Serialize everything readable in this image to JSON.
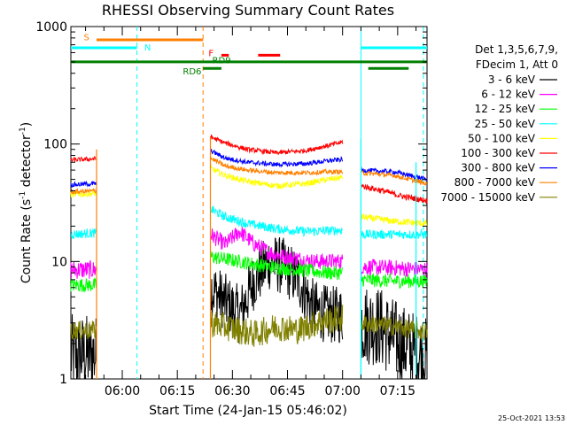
{
  "chart_data": {
    "type": "line",
    "title": "RHESSI Observing Summary Count Rates",
    "xlabel": "Start Time (24-Jan-15 05:46:02)",
    "ylabel_text": "Count Rate (s",
    "ylabel_sup1": "-1",
    "ylabel_mid": " detector",
    "ylabel_sup2": "-1",
    "ylabel_end": ")",
    "yscale": "log",
    "ylim": [
      1,
      1000
    ],
    "y_ticks": [
      {
        "value": 1,
        "label": "1"
      },
      {
        "value": 10,
        "label": "10"
      },
      {
        "value": 100,
        "label": "100"
      },
      {
        "value": 1000,
        "label": "1000"
      }
    ],
    "xlim_minutes": [
      0,
      97
    ],
    "x_ticks": [
      {
        "minute": 14,
        "label": "06:00"
      },
      {
        "minute": 29,
        "label": "06:15"
      },
      {
        "minute": 44,
        "label": "06:30"
      },
      {
        "minute": 59,
        "label": "06:45"
      },
      {
        "minute": 74,
        "label": "07:00"
      },
      {
        "minute": 89,
        "label": "07:15"
      }
    ],
    "legend_header": [
      "Det 1,3,5,6,7,9,",
      "FDecim 1, Att 0"
    ],
    "series": [
      {
        "name": "3 - 6 keV",
        "color": "#000000",
        "segments": [
          {
            "x": [
              0,
              7
            ],
            "y0": 1.6,
            "y1": 1.6,
            "noise": 0.35
          },
          {
            "x": [
              38,
              74
            ],
            "points": [
              [
                38,
                6
              ],
              [
                42,
                4.5
              ],
              [
                46,
                3.5
              ],
              [
                50,
                7
              ],
              [
                54,
                10
              ],
              [
                58,
                9
              ],
              [
                62,
                7
              ],
              [
                66,
                4
              ],
              [
                70,
                3.5
              ],
              [
                74,
                3.5
              ]
            ],
            "noise": 0.25
          },
          {
            "x": [
              79,
              97
            ],
            "points": [
              [
                79,
                3
              ],
              [
                84,
                2.8
              ],
              [
                88,
                2.2
              ],
              [
                92,
                1.8
              ],
              [
                97,
                1.5
              ]
            ],
            "noise": 0.35
          }
        ]
      },
      {
        "name": "6 - 12 keV",
        "color": "#ff00ff",
        "segments": [
          {
            "x": [
              0,
              7
            ],
            "y0": 8.5,
            "y1": 8.5,
            "noise": 0.08
          },
          {
            "x": [
              38,
              74
            ],
            "points": [
              [
                38,
                17
              ],
              [
                42,
                14
              ],
              [
                46,
                18
              ],
              [
                50,
                14
              ],
              [
                54,
                12
              ],
              [
                58,
                11
              ],
              [
                62,
                10.5
              ],
              [
                66,
                10
              ],
              [
                70,
                10
              ],
              [
                74,
                10
              ]
            ],
            "noise": 0.07
          },
          {
            "x": [
              79,
              97
            ],
            "points": [
              [
                79,
                9
              ],
              [
                88,
                8.8
              ],
              [
                97,
                8.5
              ]
            ],
            "noise": 0.07
          }
        ]
      },
      {
        "name": "12 - 25 keV",
        "color": "#00ff00",
        "segments": [
          {
            "x": [
              0,
              7
            ],
            "y0": 6.3,
            "y1": 6.3,
            "noise": 0.06
          },
          {
            "x": [
              38,
              74
            ],
            "points": [
              [
                38,
                11
              ],
              [
                46,
                10
              ],
              [
                54,
                9
              ],
              [
                62,
                8.5
              ],
              [
                70,
                8
              ],
              [
                74,
                8
              ]
            ],
            "noise": 0.06
          },
          {
            "x": [
              79,
              97
            ],
            "points": [
              [
                79,
                7
              ],
              [
                88,
                6.8
              ],
              [
                97,
                6.8
              ]
            ],
            "noise": 0.06
          }
        ]
      },
      {
        "name": "25 - 50 keV",
        "color": "#00ffff",
        "segments": [
          {
            "x": [
              0,
              7
            ],
            "y0": 17,
            "y1": 17.5,
            "noise": 0.04
          },
          {
            "x": [
              38,
              74
            ],
            "points": [
              [
                38,
                28
              ],
              [
                42,
                24
              ],
              [
                48,
                21
              ],
              [
                56,
                19
              ],
              [
                64,
                18
              ],
              [
                74,
                18.5
              ]
            ],
            "noise": 0.04
          },
          {
            "x": [
              79,
              97
            ],
            "points": [
              [
                79,
                17
              ],
              [
                88,
                17
              ],
              [
                97,
                17
              ]
            ],
            "noise": 0.04
          }
        ]
      },
      {
        "name": "50 - 100 keV",
        "color": "#ffff00",
        "segments": [
          {
            "x": [
              0,
              7
            ],
            "y0": 37,
            "y1": 38,
            "noise": 0.025
          },
          {
            "x": [
              38,
              74
            ],
            "points": [
              [
                38,
                62
              ],
              [
                42,
                54
              ],
              [
                48,
                48
              ],
              [
                56,
                44
              ],
              [
                64,
                46
              ],
              [
                70,
                50
              ],
              [
                74,
                52
              ]
            ],
            "noise": 0.025
          },
          {
            "x": [
              79,
              97
            ],
            "points": [
              [
                79,
                24
              ],
              [
                88,
                22
              ],
              [
                97,
                21
              ]
            ],
            "noise": 0.03
          }
        ]
      },
      {
        "name": "100 - 300 keV",
        "color": "#ff0000",
        "segments": [
          {
            "x": [
              0,
              7
            ],
            "y0": 73,
            "y1": 75,
            "noise": 0.02
          },
          {
            "x": [
              38,
              74
            ],
            "points": [
              [
                38,
                115
              ],
              [
                42,
                102
              ],
              [
                48,
                90
              ],
              [
                56,
                84
              ],
              [
                64,
                88
              ],
              [
                70,
                97
              ],
              [
                74,
                104
              ]
            ],
            "noise": 0.02
          },
          {
            "x": [
              79,
              97
            ],
            "points": [
              [
                79,
                44
              ],
              [
                85,
                40
              ],
              [
                90,
                36
              ],
              [
                97,
                33
              ]
            ],
            "noise": 0.025
          }
        ]
      },
      {
        "name": "300 - 800 keV",
        "color": "#0000ff",
        "segments": [
          {
            "x": [
              0,
              7
            ],
            "y0": 45,
            "y1": 46,
            "noise": 0.02
          },
          {
            "x": [
              38,
              74
            ],
            "points": [
              [
                38,
                88
              ],
              [
                42,
                76
              ],
              [
                48,
                70
              ],
              [
                56,
                67
              ],
              [
                64,
                68
              ],
              [
                70,
                72
              ],
              [
                74,
                74
              ]
            ],
            "noise": 0.02
          },
          {
            "x": [
              79,
              97
            ],
            "points": [
              [
                79,
                60
              ],
              [
                88,
                58
              ],
              [
                97,
                50
              ]
            ],
            "noise": 0.02
          }
        ]
      },
      {
        "name": "800 - 7000 keV",
        "color": "#ff8000",
        "segments": [
          {
            "x": [
              0,
              7
            ],
            "y0": 39,
            "y1": 40,
            "noise": 0.02
          },
          {
            "x": [
              38,
              74
            ],
            "points": [
              [
                38,
                76
              ],
              [
                42,
                65
              ],
              [
                48,
                60
              ],
              [
                56,
                57
              ],
              [
                64,
                57
              ],
              [
                70,
                58
              ],
              [
                74,
                58
              ]
            ],
            "noise": 0.02
          },
          {
            "x": [
              79,
              97
            ],
            "points": [
              [
                79,
                57
              ],
              [
                88,
                54
              ],
              [
                97,
                46
              ]
            ],
            "noise": 0.02
          }
        ]
      },
      {
        "name": "7000 - 15000 keV",
        "color": "#808000",
        "segments": [
          {
            "x": [
              0,
              7
            ],
            "y0": 2.6,
            "y1": 2.6,
            "noise": 0.08
          },
          {
            "x": [
              38,
              74
            ],
            "points": [
              [
                38,
                3
              ],
              [
                44,
                2.7
              ],
              [
                50,
                2.4
              ],
              [
                56,
                2.8
              ],
              [
                62,
                2.6
              ],
              [
                68,
                3.1
              ],
              [
                74,
                3.3
              ]
            ],
            "noise": 0.12
          },
          {
            "x": [
              79,
              97
            ],
            "points": [
              [
                79,
                3
              ],
              [
                88,
                2.8
              ],
              [
                97,
                2.5
              ]
            ],
            "noise": 0.08
          }
        ]
      }
    ],
    "extra_lines": [
      {
        "color": "#ff8000",
        "from": [
          7,
          1
        ],
        "to": [
          7,
          90
        ]
      },
      {
        "color": "#ff8000",
        "from": [
          38,
          1
        ],
        "to": [
          38,
          115
        ]
      },
      {
        "color": "#00ffff",
        "from": [
          79,
          1
        ],
        "to": [
          79,
          110
        ]
      },
      {
        "color": "#00ffff",
        "from": [
          94,
          1
        ],
        "to": [
          94,
          70
        ]
      }
    ],
    "vlines": [
      {
        "minute": 18,
        "color": "#00ffff",
        "dash": true
      },
      {
        "minute": 36,
        "color": "#ff8000",
        "dash": true
      },
      {
        "minute": 79,
        "color": "#00ffff",
        "dash": false
      },
      {
        "minute": 96,
        "color": "#00ffff",
        "dash": true
      }
    ],
    "flags": [
      {
        "label": "S",
        "color": "#ff8000",
        "value": 770,
        "start": 7,
        "end": 36,
        "label_minute": 3.5,
        "label_value": 820
      },
      {
        "label": "N",
        "color": "#00ffff",
        "value": 660,
        "start": 0,
        "end": 18,
        "label_minute": 20,
        "label_value": 670
      },
      {
        "label": "F",
        "color": "#ff0000",
        "value": 570,
        "start": 41,
        "end": 43,
        "label_minute": 37.5,
        "label_value": 600
      },
      {
        "label": "",
        "color": "#ff0000",
        "value": 570,
        "start": 51,
        "end": 57,
        "label_minute": null,
        "label_value": null
      },
      {
        "label": "",
        "color": "#00ffff",
        "value": 660,
        "start": 79,
        "end": 97,
        "label_minute": null,
        "label_value": null
      },
      {
        "label": "RD9",
        "color": "#008000",
        "value": 500,
        "start": 0,
        "end": 97,
        "label_minute": 38.5,
        "label_value": 520
      },
      {
        "label": "RD6",
        "color": "#008000",
        "value": 440,
        "start": 36,
        "end": 41,
        "label_minute": 30.5,
        "label_value": 420
      },
      {
        "label": "",
        "color": "#008000",
        "value": 440,
        "start": 81,
        "end": 92,
        "label_minute": null,
        "label_value": null
      }
    ],
    "grid": false
  },
  "timestamp": "25-Oct-2021 13:53"
}
